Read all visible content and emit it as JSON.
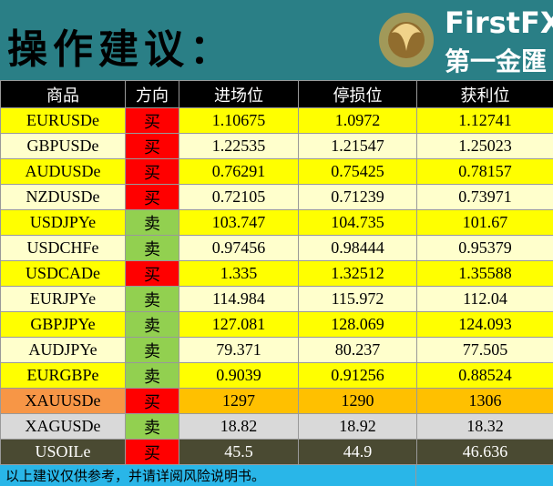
{
  "header": {
    "title": "操作建议：",
    "logo_en": "FirstFX",
    "logo_cn": "第一金匯"
  },
  "table": {
    "columns": [
      "商品",
      "方向",
      "进场位",
      "停损位",
      "获利位"
    ],
    "rows": [
      [
        "EURUSDe",
        "买",
        "1.10675",
        "1.0972",
        "1.12741"
      ],
      [
        "GBPUSDe",
        "买",
        "1.22535",
        "1.21547",
        "1.25023"
      ],
      [
        "AUDUSDe",
        "买",
        "0.76291",
        "0.75425",
        "0.78157"
      ],
      [
        "NZDUSDe",
        "买",
        "0.72105",
        "0.71239",
        "0.73971"
      ],
      [
        "USDJPYe",
        "卖",
        "103.747",
        "104.735",
        "101.67"
      ],
      [
        "USDCHFe",
        "卖",
        "0.97456",
        "0.98444",
        "0.95379"
      ],
      [
        "USDCADe",
        "买",
        "1.335",
        "1.32512",
        "1.35588"
      ],
      [
        "EURJPYe",
        "卖",
        "114.984",
        "115.972",
        "112.04"
      ],
      [
        "GBPJPYe",
        "卖",
        "127.081",
        "128.069",
        "124.093"
      ],
      [
        "AUDJPYe",
        "卖",
        "79.371",
        "80.237",
        "77.505"
      ],
      [
        "EURGBPe",
        "卖",
        "0.9039",
        "0.91256",
        "0.88524"
      ],
      [
        "XAUUSDe",
        "买",
        "1297",
        "1290",
        "1306"
      ],
      [
        "XAGUSDe",
        "卖",
        "18.82",
        "18.92",
        "18.32"
      ],
      [
        "USOILe",
        "买",
        "45.5",
        "44.9",
        "46.636"
      ]
    ]
  },
  "footer": "以上建议仅供参考，并请详阅风险说明书。"
}
